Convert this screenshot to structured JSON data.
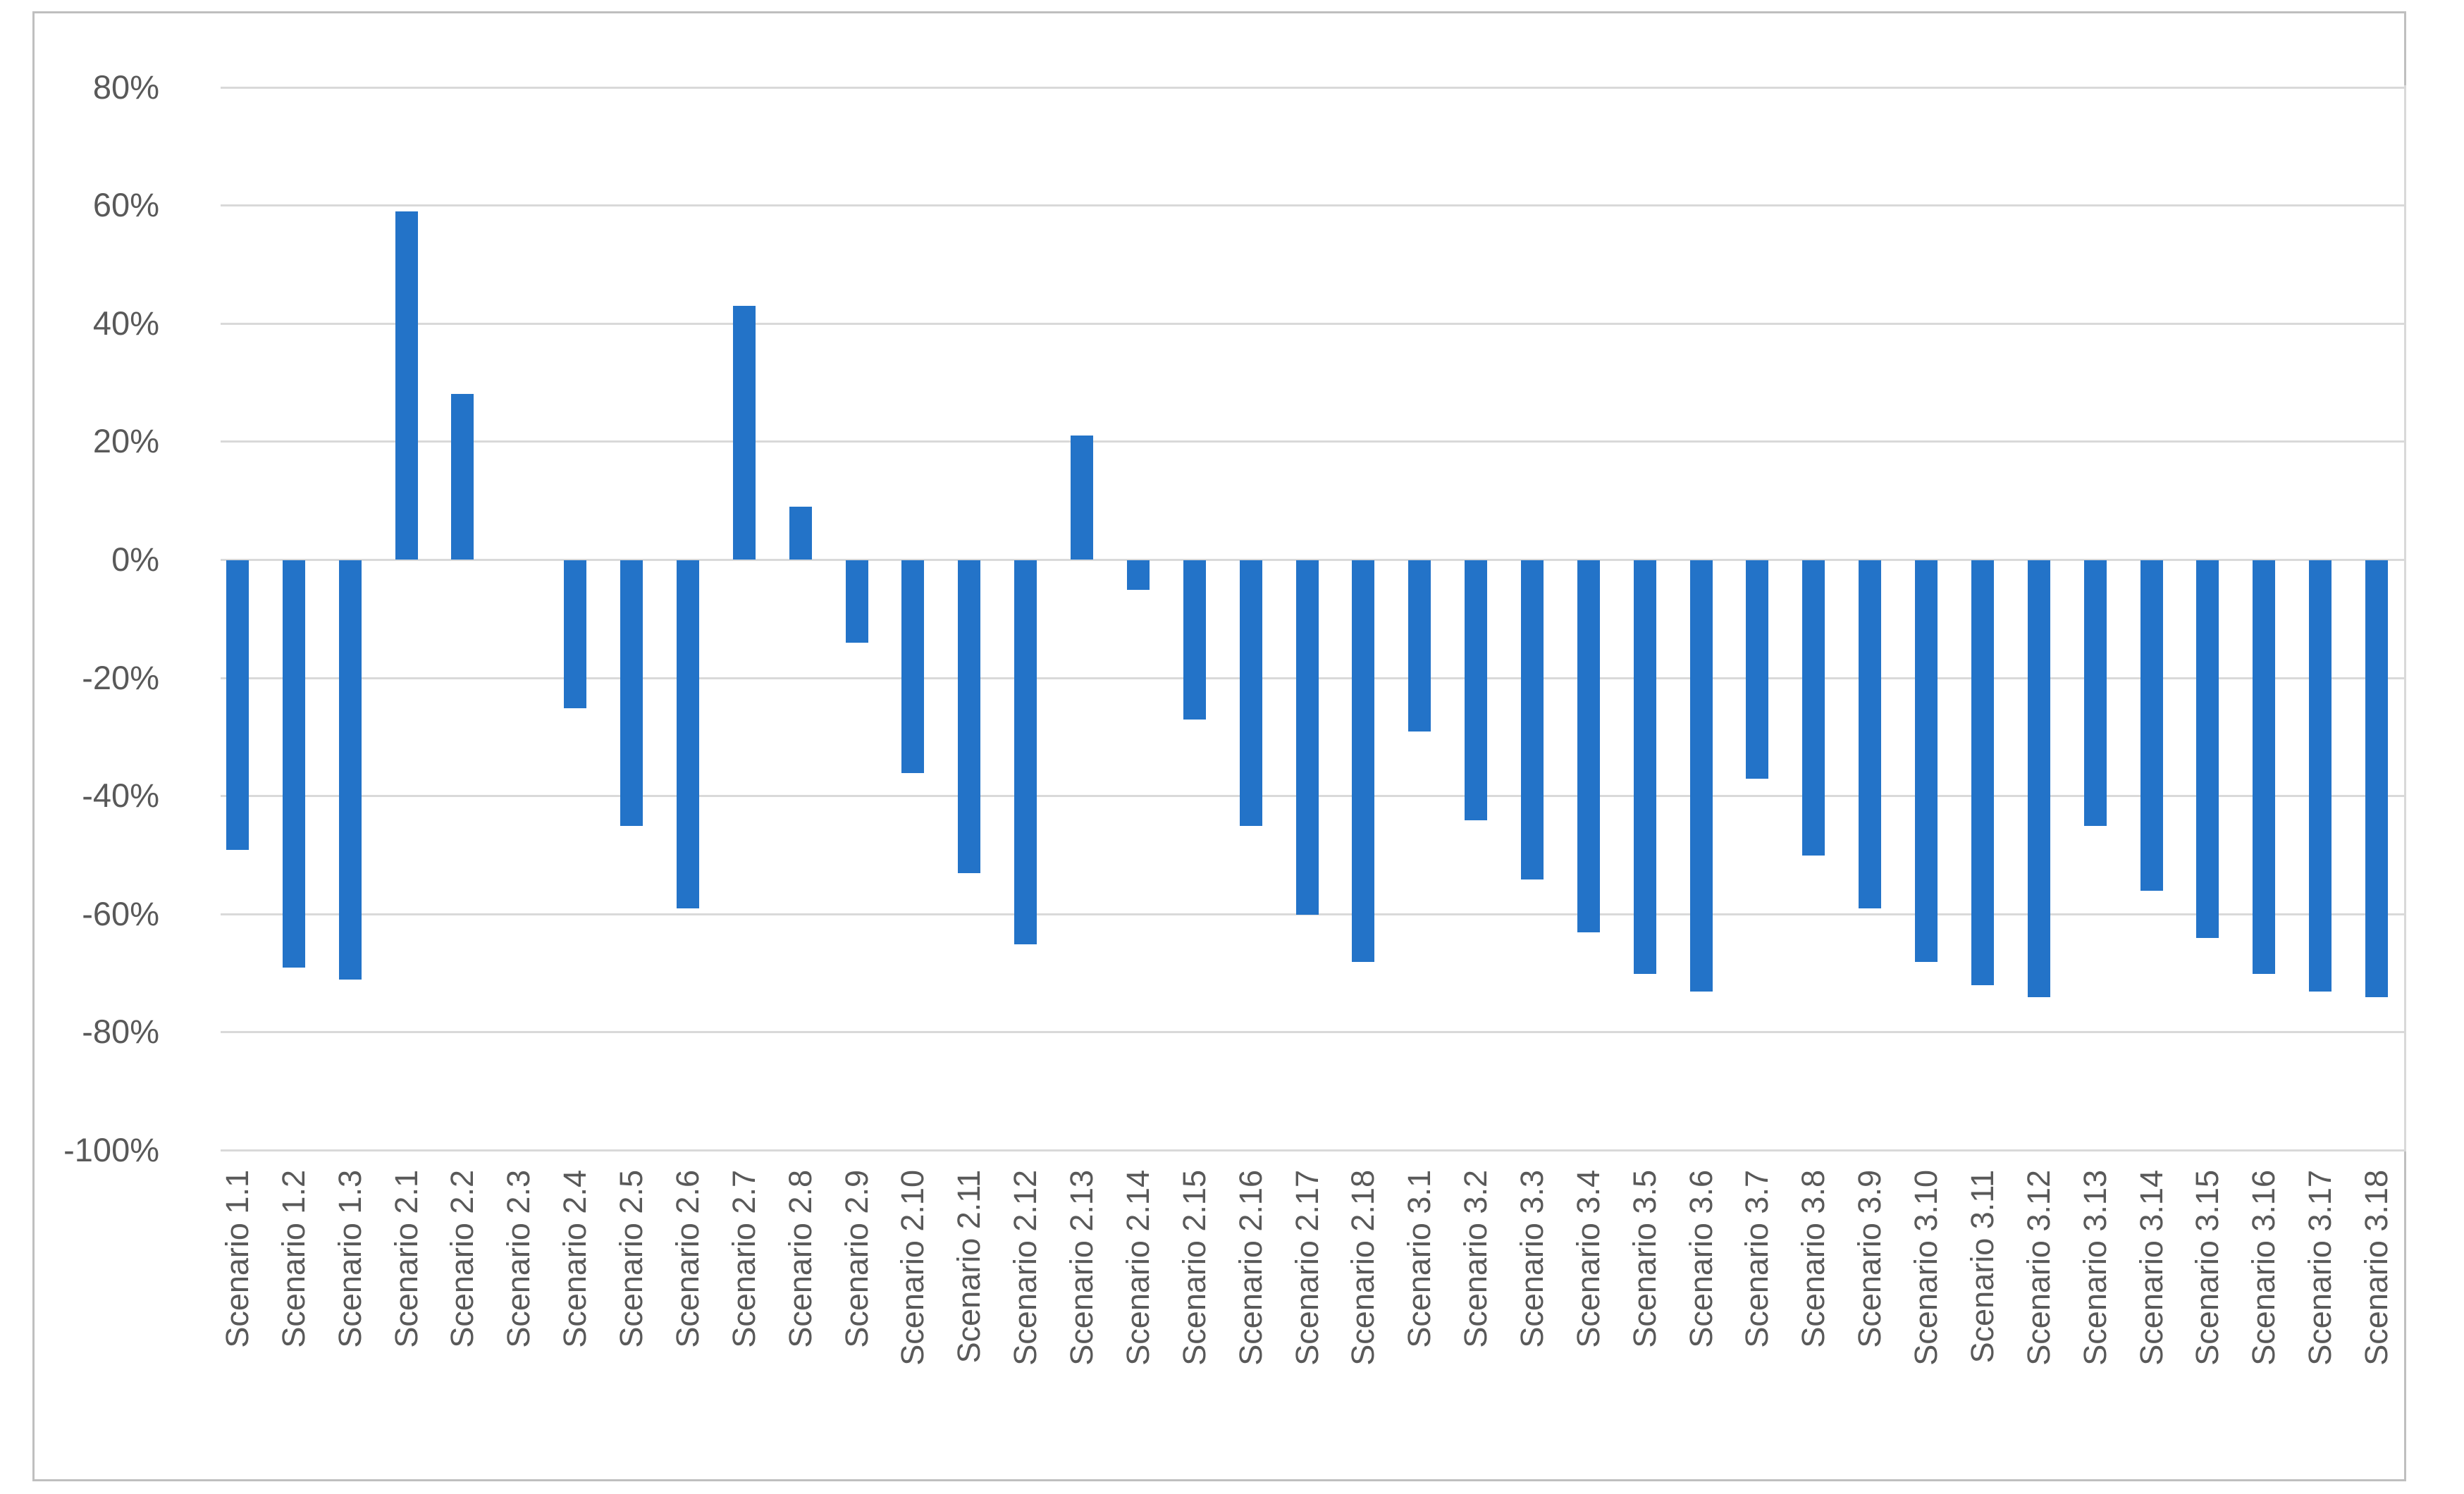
{
  "chart_data": {
    "type": "bar",
    "title": "",
    "xlabel": "",
    "ylabel": "",
    "legend": false,
    "grid": true,
    "categories": [
      "Scenario 1.1",
      "Scenario 1.2",
      "Scenario 1.3",
      "Scenario 2.1",
      "Scenario 2.2",
      "Scenario 2.3",
      "Scenario 2.4",
      "Scenario 2.5",
      "Scenario 2.6",
      "Scenario 2.7",
      "Scenario 2.8",
      "Scenario 2.9",
      "Scenario 2.10",
      "Scenario 2.11",
      "Scenario 2.12",
      "Scenario 2.13",
      "Scenario 2.14",
      "Scenario 2.15",
      "Scenario 2.16",
      "Scenario 2.17",
      "Scenario 2.18",
      "Scenario 3.1",
      "Scenario 3.2",
      "Scenario 3.3",
      "Scenario 3.4",
      "Scenario 3.5",
      "Scenario 3.6",
      "Scenario 3.7",
      "Scenario 3.8",
      "Scenario 3.9",
      "Scenario 3.10",
      "Scenario 3.11",
      "Scenario 3.12",
      "Scenario 3.13",
      "Scenario 3.14",
      "Scenario 3.15",
      "Scenario 3.16",
      "Scenario 3.17",
      "Scenario 3.18"
    ],
    "values": [
      -49,
      -69,
      -71,
      59,
      28,
      0,
      -25,
      -45,
      -59,
      43,
      9,
      -14,
      -36,
      -53,
      -65,
      21,
      -5,
      -27,
      -45,
      -60,
      -68,
      -29,
      -44,
      -54,
      -63,
      -70,
      -73,
      -37,
      -50,
      -59,
      -68,
      -72,
      -74,
      -45,
      -56,
      -64,
      -70,
      -73,
      -74
    ],
    "value_unit": "%",
    "y_axis": {
      "min": -100,
      "max": 80,
      "step": 20,
      "tick_labels": [
        "80%",
        "60%",
        "40%",
        "20%",
        "0%",
        "-20%",
        "-40%",
        "-60%",
        "-80%",
        "-100%"
      ]
    },
    "colors": {
      "bar": "#2373C8",
      "gridline": "#D9D9D9",
      "frame_border": "#BFBFBF",
      "axis_label": "#595959",
      "background": "#FFFFFF"
    },
    "legend_position": "none"
  }
}
